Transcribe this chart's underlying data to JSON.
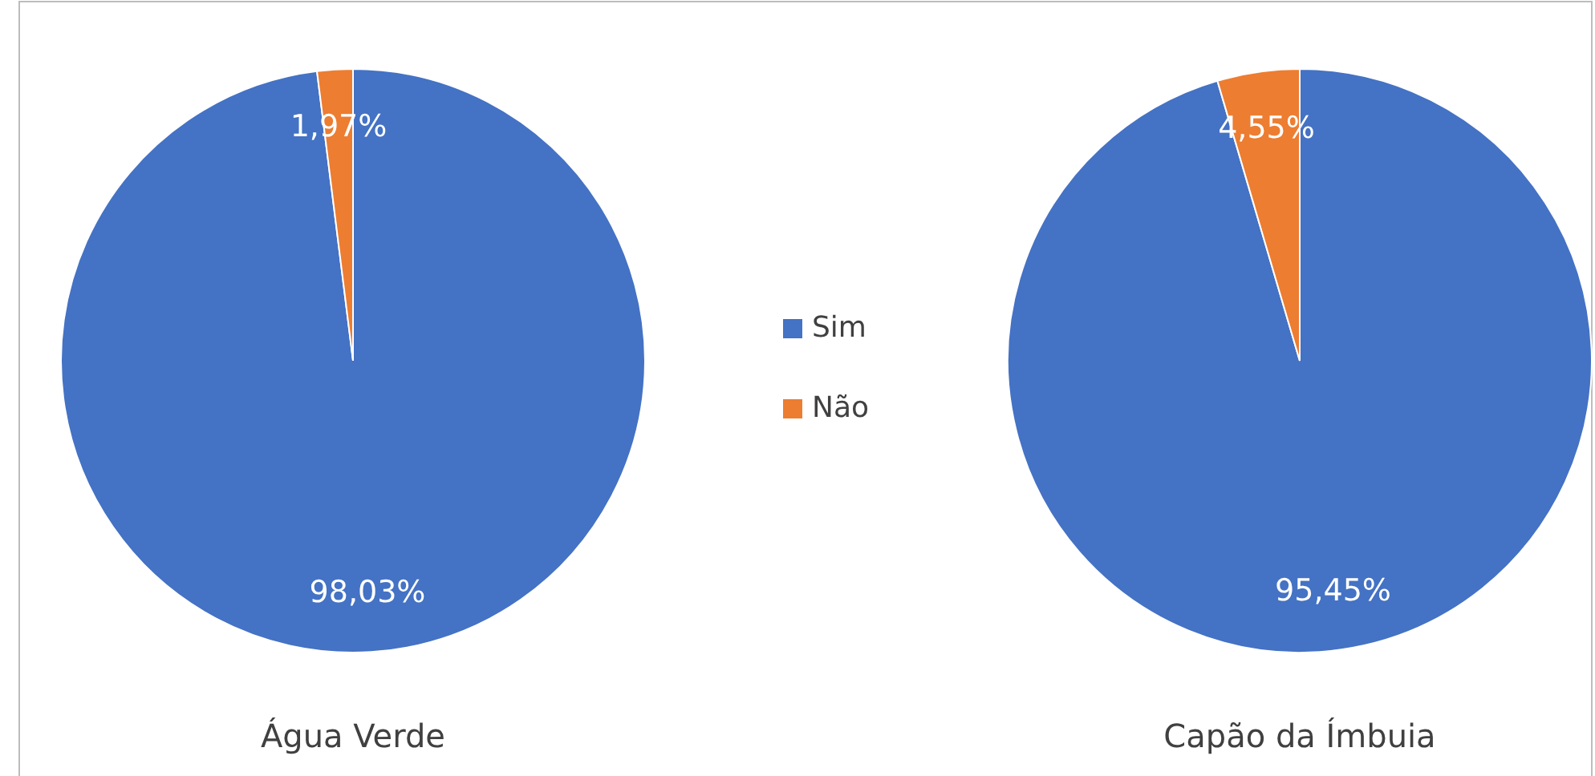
{
  "chart_data": [
    {
      "type": "pie",
      "title": "Água Verde",
      "categories": [
        "Sim",
        "Não"
      ],
      "values": [
        98.03,
        1.97
      ],
      "colors": [
        "#4472c4",
        "#ed7d31"
      ],
      "value_labels": [
        "98,03%",
        "1,97%"
      ],
      "legend": "right"
    },
    {
      "type": "pie",
      "title": "Capão da Ímbuia",
      "categories": [
        null,
        null
      ],
      "values": [
        95.45,
        4.55
      ],
      "colors": [
        "#4472c4",
        "#ed7d31"
      ],
      "value_labels": [
        "95,45%",
        "4,55%"
      ]
    }
  ]
}
